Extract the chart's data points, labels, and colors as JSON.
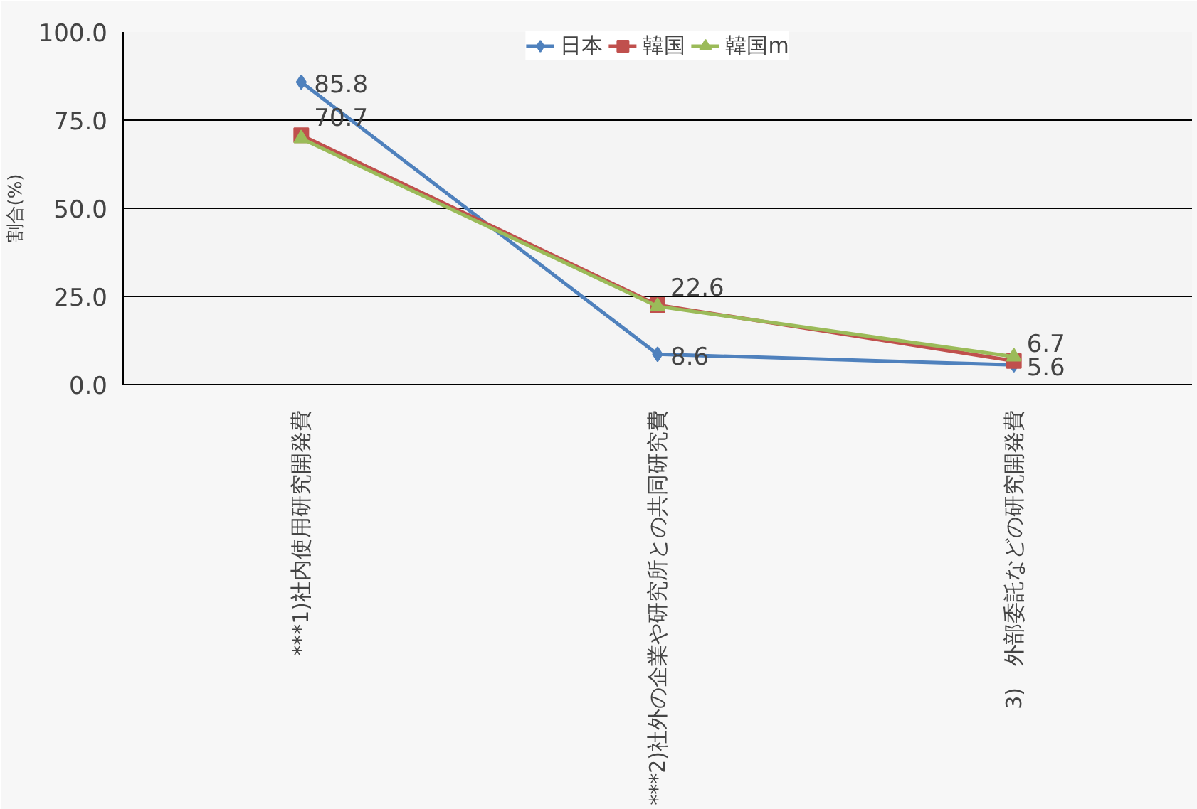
{
  "chart_data": {
    "type": "line",
    "ylabel": "割合(%)",
    "categories": [
      "***1)社内使用研究開発費",
      "***2)社外の企業や研究所との共同研究費",
      "3)　外部委託などの研究開発費"
    ],
    "series": [
      {
        "name": "日本",
        "color": "#4f81bd",
        "marker": "diamond",
        "values": [
          85.8,
          8.6,
          5.6
        ],
        "value_labels": [
          "85.8",
          "8.6",
          "5.6"
        ]
      },
      {
        "name": "韓国",
        "color": "#c0504d",
        "marker": "square",
        "values": [
          70.7,
          22.6,
          6.7
        ],
        "value_labels": [
          "70.7",
          "22.6",
          "6.7"
        ]
      },
      {
        "name": "韓国m",
        "color": "#9bbb59",
        "marker": "triangle",
        "values": [
          69.8,
          22.2,
          7.9
        ]
      }
    ],
    "ylim": [
      0,
      100
    ],
    "yticks": [
      {
        "value": 0,
        "label": "0.0"
      },
      {
        "value": 25,
        "label": "25.0"
      },
      {
        "value": 50,
        "label": "50.0"
      },
      {
        "value": 75,
        "label": "75.0"
      },
      {
        "value": 100,
        "label": "100.0"
      }
    ],
    "grid": "y",
    "legend": "top"
  }
}
